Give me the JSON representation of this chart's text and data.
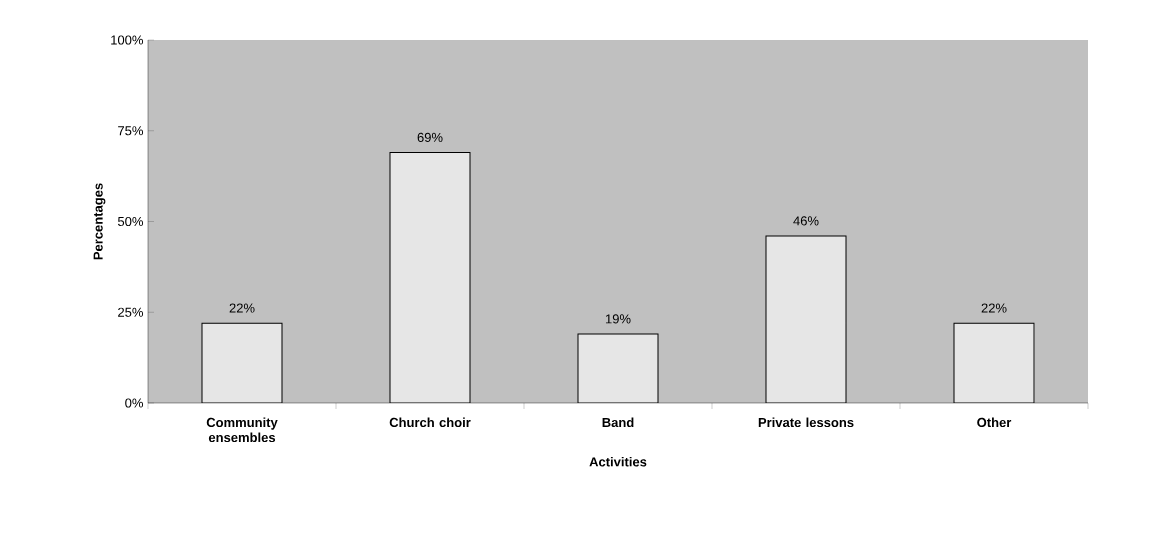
{
  "chart_data": {
    "type": "bar",
    "xlabel": "Activities",
    "ylabel": "Percentages",
    "categories": [
      "Community ensembles",
      "Church choir",
      "Band",
      "Private lessons",
      "Other"
    ],
    "values": [
      22,
      69,
      19,
      46,
      22
    ],
    "value_labels": [
      "22%",
      "69%",
      "19%",
      "46%",
      "22%"
    ],
    "color": "#e6e6e6",
    "ylim": [
      0,
      100
    ],
    "yticks": [
      {
        "value": 0,
        "label": "0%"
      },
      {
        "value": 25,
        "label": "25%"
      },
      {
        "value": 50,
        "label": "50%"
      },
      {
        "value": 75,
        "label": "75%"
      },
      {
        "value": 100,
        "label": "100%"
      }
    ],
    "grid": false
  }
}
